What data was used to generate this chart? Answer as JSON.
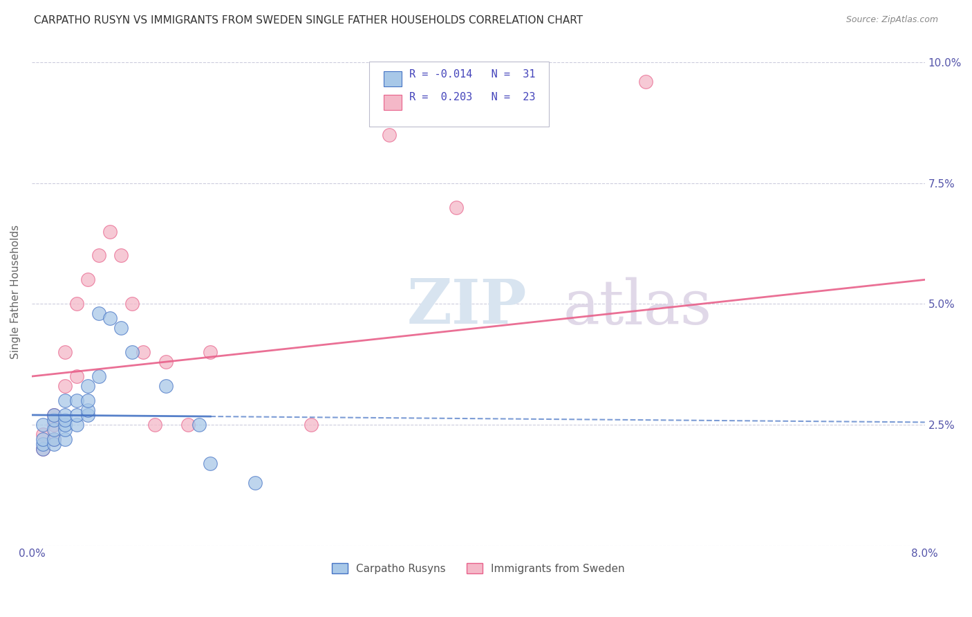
{
  "title": "CARPATHO RUSYN VS IMMIGRANTS FROM SWEDEN SINGLE FATHER HOUSEHOLDS CORRELATION CHART",
  "source": "Source: ZipAtlas.com",
  "ylabel": "Single Father Households",
  "xlim": [
    0.0,
    0.08
  ],
  "ylim": [
    0.0,
    0.105
  ],
  "xticks": [
    0.0,
    0.02,
    0.04,
    0.06,
    0.08
  ],
  "xticklabels": [
    "0.0%",
    "",
    "",
    "",
    "8.0%"
  ],
  "yticks": [
    0.0,
    0.025,
    0.05,
    0.075,
    0.1
  ],
  "yticklabels": [
    "",
    "2.5%",
    "5.0%",
    "7.5%",
    "10.0%"
  ],
  "legend_r1_label": "R = -0.014",
  "legend_n1_label": "N =  31",
  "legend_r2_label": "R =  0.203",
  "legend_n2_label": "N =  23",
  "color_blue": "#a8c8e8",
  "color_pink": "#f4b8c8",
  "color_blue_line": "#4472c4",
  "color_pink_line": "#e8608a",
  "watermark_zip": "ZIP",
  "watermark_atlas": "atlas",
  "legend_label_blue": "Carpatho Rusyns",
  "legend_label_pink": "Immigrants from Sweden",
  "carpatho_rusyn_x": [
    0.001,
    0.001,
    0.001,
    0.001,
    0.002,
    0.002,
    0.002,
    0.002,
    0.002,
    0.003,
    0.003,
    0.003,
    0.003,
    0.003,
    0.003,
    0.004,
    0.004,
    0.004,
    0.005,
    0.005,
    0.005,
    0.005,
    0.006,
    0.006,
    0.007,
    0.008,
    0.009,
    0.012,
    0.015,
    0.016,
    0.02
  ],
  "carpatho_rusyn_y": [
    0.02,
    0.021,
    0.022,
    0.025,
    0.021,
    0.022,
    0.024,
    0.026,
    0.027,
    0.022,
    0.024,
    0.025,
    0.026,
    0.027,
    0.03,
    0.025,
    0.027,
    0.03,
    0.027,
    0.028,
    0.03,
    0.033,
    0.035,
    0.048,
    0.047,
    0.045,
    0.04,
    0.033,
    0.025,
    0.017,
    0.013
  ],
  "sweden_x": [
    0.001,
    0.001,
    0.002,
    0.002,
    0.002,
    0.003,
    0.003,
    0.004,
    0.004,
    0.005,
    0.006,
    0.007,
    0.008,
    0.009,
    0.01,
    0.011,
    0.012,
    0.014,
    0.016,
    0.025,
    0.032,
    0.038,
    0.055
  ],
  "sweden_y": [
    0.02,
    0.023,
    0.022,
    0.025,
    0.027,
    0.033,
    0.04,
    0.035,
    0.05,
    0.055,
    0.06,
    0.065,
    0.06,
    0.05,
    0.04,
    0.025,
    0.038,
    0.025,
    0.04,
    0.025,
    0.085,
    0.07,
    0.096
  ],
  "blue_line_x0": 0.0,
  "blue_line_y0": 0.027,
  "blue_line_x1": 0.08,
  "blue_line_y1": 0.0255,
  "pink_line_x0": 0.0,
  "pink_line_y0": 0.035,
  "pink_line_x1": 0.08,
  "pink_line_y1": 0.055
}
